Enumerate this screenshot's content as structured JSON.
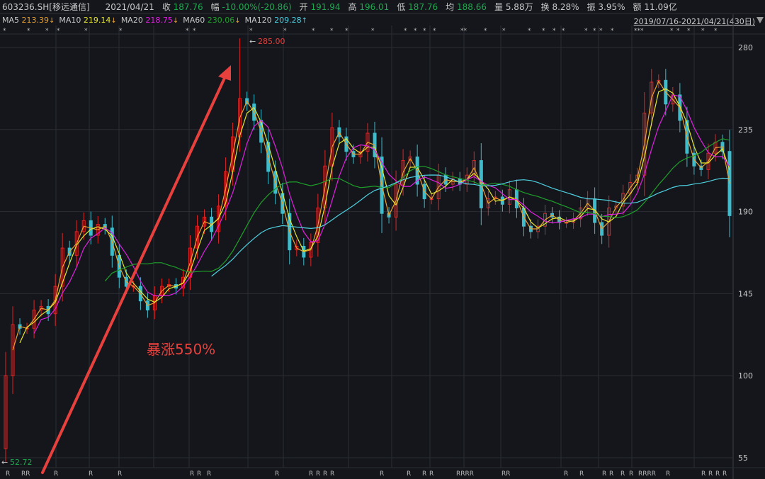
{
  "header": {
    "symbol": "603236.SH[移远通信]",
    "date": "2021/04/21",
    "close_label": "收",
    "close": "187.76",
    "change_label": "幅",
    "change": "-10.00%(-20.86)",
    "open_label": "开",
    "open": "191.94",
    "high_label": "高",
    "high": "196.01",
    "low_label": "低",
    "low": "187.76",
    "avg_label": "均",
    "avg": "188.66",
    "volume_label": "量",
    "volume": "5.88万",
    "turnover_label": "换",
    "turnover": "8.28%",
    "amplitude_label": "振",
    "amplitude": "3.95%",
    "amount_label": "额",
    "amount": "11.09亿"
  },
  "ma_legend": [
    {
      "label": "MA5",
      "value": "213.39",
      "dir": "↓",
      "color": "#e8a030"
    },
    {
      "label": "MA10",
      "value": "219.14",
      "dir": "↓",
      "color": "#e6e62e"
    },
    {
      "label": "MA20",
      "value": "218.75",
      "dir": "↓",
      "color": "#e020e0"
    },
    {
      "label": "MA60",
      "value": "230.06",
      "dir": "↓",
      "color": "#1fa02a"
    },
    {
      "label": "MA120",
      "value": "209.28",
      "dir": "↑",
      "color": "#4fd0e0"
    }
  ],
  "date_range": "2019/07/16-2021/04/21(430日)",
  "colors": {
    "up": "#e02424",
    "down": "#3fbccc",
    "background": "#14161b",
    "grid": "#2a2d33",
    "annotation": "#e8403c"
  },
  "chart_data": {
    "type": "candlestick",
    "title": "",
    "y_ticks": [
      "280",
      "235",
      "190",
      "145",
      "100",
      "55"
    ],
    "ylim": [
      52.72,
      285
    ],
    "period": "2019/07/16-2021/04/21",
    "max_label": "285.00",
    "min_label": "52.72",
    "closes": [
      100,
      128,
      126,
      126,
      136,
      138,
      134,
      149,
      170,
      166,
      179,
      185,
      177,
      183,
      181,
      166,
      154,
      149,
      149,
      141,
      136,
      144,
      149,
      150,
      148,
      154,
      170,
      182,
      187,
      179,
      193,
      212,
      231,
      252,
      249,
      240,
      228,
      212,
      200,
      189,
      169,
      171,
      165,
      173,
      192,
      215,
      236,
      231,
      223,
      220,
      223,
      233,
      220,
      189,
      187,
      205,
      218,
      220,
      205,
      197,
      197,
      210,
      205,
      208,
      205,
      210,
      218,
      192,
      197,
      198,
      194,
      202,
      192,
      182,
      179,
      182,
      189,
      187,
      184,
      184,
      186,
      192,
      197,
      184,
      177,
      192,
      193,
      200,
      206,
      210,
      244,
      261,
      262,
      249,
      254,
      240,
      222,
      215,
      213,
      222,
      228,
      223,
      187.76
    ],
    "moving_averages": [
      "MA5",
      "MA10",
      "MA20",
      "MA60",
      "MA120"
    ],
    "annotation": {
      "text": "暴涨550%",
      "type": "arrow"
    }
  }
}
